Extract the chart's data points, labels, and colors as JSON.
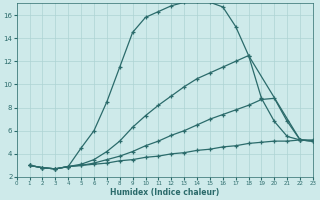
{
  "xlabel": "Humidex (Indice chaleur)",
  "background_color": "#ceeaea",
  "line_color": "#2b6b6b",
  "grid_color": "#aed4d4",
  "xlim": [
    0,
    23
  ],
  "ylim": [
    2,
    17
  ],
  "yticks": [
    2,
    4,
    6,
    8,
    10,
    12,
    14,
    16
  ],
  "xticks": [
    0,
    1,
    2,
    3,
    4,
    5,
    6,
    7,
    8,
    9,
    10,
    11,
    12,
    13,
    14,
    15,
    16,
    17,
    18,
    19,
    20,
    21,
    22,
    23
  ],
  "curves": [
    {
      "x": [
        1,
        2,
        3,
        4,
        5,
        6,
        7,
        8,
        9,
        10,
        11,
        12,
        13,
        14,
        15,
        16,
        17,
        18,
        22,
        23
      ],
      "y": [
        3,
        2.8,
        2.7,
        2.9,
        4.5,
        6.0,
        8.5,
        11.5,
        14.5,
        15.8,
        16.3,
        16.8,
        17.1,
        17.2,
        17.1,
        16.7,
        15.0,
        12.5,
        5.2,
        5.1
      ]
    },
    {
      "x": [
        1,
        2,
        3,
        4,
        5,
        6,
        7,
        8,
        9,
        10,
        11,
        12,
        13,
        14,
        15,
        16,
        17,
        18,
        19,
        20,
        21,
        22,
        23
      ],
      "y": [
        3,
        2.8,
        2.7,
        2.9,
        3.1,
        3.5,
        4.2,
        5.1,
        6.3,
        7.3,
        8.2,
        9.0,
        9.8,
        10.5,
        11.0,
        11.5,
        12.0,
        12.5,
        8.8,
        6.8,
        5.5,
        5.2,
        5.1
      ]
    },
    {
      "x": [
        1,
        2,
        3,
        4,
        5,
        6,
        7,
        8,
        9,
        10,
        11,
        12,
        13,
        14,
        15,
        16,
        17,
        18,
        19,
        20,
        21,
        22,
        23
      ],
      "y": [
        3,
        2.8,
        2.7,
        2.9,
        3.0,
        3.2,
        3.5,
        3.8,
        4.2,
        4.7,
        5.1,
        5.6,
        6.0,
        6.5,
        7.0,
        7.4,
        7.8,
        8.2,
        8.7,
        8.8,
        6.8,
        5.2,
        5.1
      ]
    },
    {
      "x": [
        1,
        2,
        3,
        4,
        5,
        6,
        7,
        8,
        9,
        10,
        11,
        12,
        13,
        14,
        15,
        16,
        17,
        18,
        19,
        20,
        21,
        22,
        23
      ],
      "y": [
        3,
        2.8,
        2.7,
        2.9,
        3.0,
        3.1,
        3.2,
        3.4,
        3.5,
        3.7,
        3.8,
        4.0,
        4.1,
        4.3,
        4.4,
        4.6,
        4.7,
        4.9,
        5.0,
        5.1,
        5.1,
        5.2,
        5.2
      ]
    }
  ]
}
